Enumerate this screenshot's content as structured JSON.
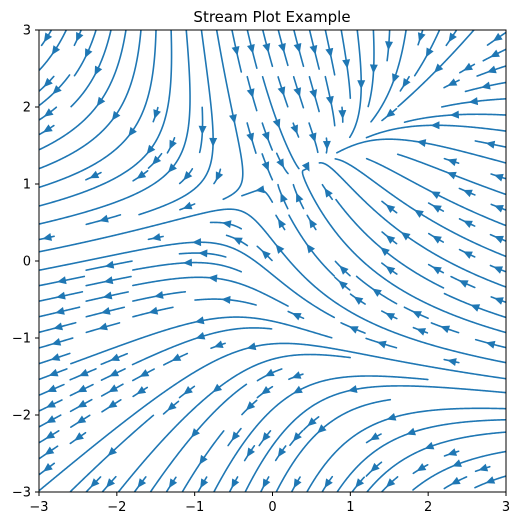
{
  "chart_data": {
    "type": "streamplot",
    "title": "Stream Plot Example",
    "xlabel": "",
    "ylabel": "",
    "xlim": [
      -3,
      3
    ],
    "ylim": [
      -3,
      3
    ],
    "x_ticks": [
      -3,
      -2,
      -1,
      0,
      1,
      2,
      3
    ],
    "y_ticks": [
      -3,
      -2,
      -1,
      0,
      1,
      2,
      3
    ],
    "x_tick_labels": [
      "−3",
      "−2",
      "−1",
      "0",
      "1",
      "2",
      "3"
    ],
    "y_tick_labels": [
      "−3",
      "−2",
      "−1",
      "0",
      "1",
      "2",
      "3"
    ],
    "grid": false,
    "line_color": "#1f77b4",
    "field": "u = -1 - x^2 + y, v = 1 + x - y^2",
    "density": 1
  }
}
